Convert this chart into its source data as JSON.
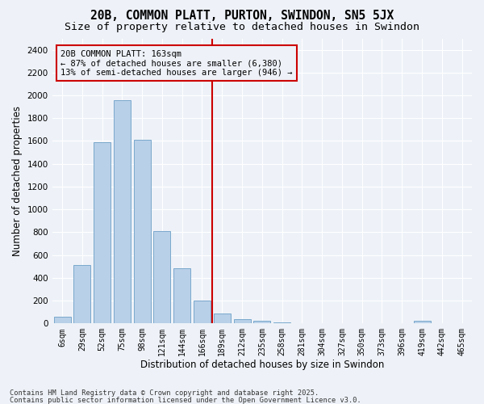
{
  "title1": "20B, COMMON PLATT, PURTON, SWINDON, SN5 5JX",
  "title2": "Size of property relative to detached houses in Swindon",
  "xlabel": "Distribution of detached houses by size in Swindon",
  "ylabel": "Number of detached properties",
  "categories": [
    "6sqm",
    "29sqm",
    "52sqm",
    "75sqm",
    "98sqm",
    "121sqm",
    "144sqm",
    "166sqm",
    "189sqm",
    "212sqm",
    "235sqm",
    "258sqm",
    "281sqm",
    "304sqm",
    "327sqm",
    "350sqm",
    "373sqm",
    "396sqm",
    "419sqm",
    "442sqm",
    "465sqm"
  ],
  "values": [
    55,
    510,
    1590,
    1960,
    1610,
    810,
    480,
    200,
    90,
    40,
    20,
    10,
    5,
    5,
    3,
    2,
    1,
    0,
    20,
    0,
    0
  ],
  "bar_color": "#b8d0e8",
  "bar_edge_color": "#7aa8cc",
  "vline_color": "#cc0000",
  "annotation_title": "20B COMMON PLATT: 163sqm",
  "annotation_line1": "← 87% of detached houses are smaller (6,380)",
  "annotation_line2": "13% of semi-detached houses are larger (946) →",
  "annotation_box_color": "#cc0000",
  "ylim": [
    0,
    2500
  ],
  "yticks": [
    0,
    200,
    400,
    600,
    800,
    1000,
    1200,
    1400,
    1600,
    1800,
    2000,
    2200,
    2400
  ],
  "footer1": "Contains HM Land Registry data © Crown copyright and database right 2025.",
  "footer2": "Contains public sector information licensed under the Open Government Licence v3.0.",
  "bg_color": "#eef2f8",
  "grid_color": "#ffffff",
  "title_fontsize": 10.5,
  "subtitle_fontsize": 9.5,
  "ylabel_fontsize": 8.5,
  "xlabel_fontsize": 8.5,
  "tick_fontsize": 7,
  "annot_fontsize": 7.5,
  "footer_fontsize": 6.2,
  "vline_pos": 7.5
}
